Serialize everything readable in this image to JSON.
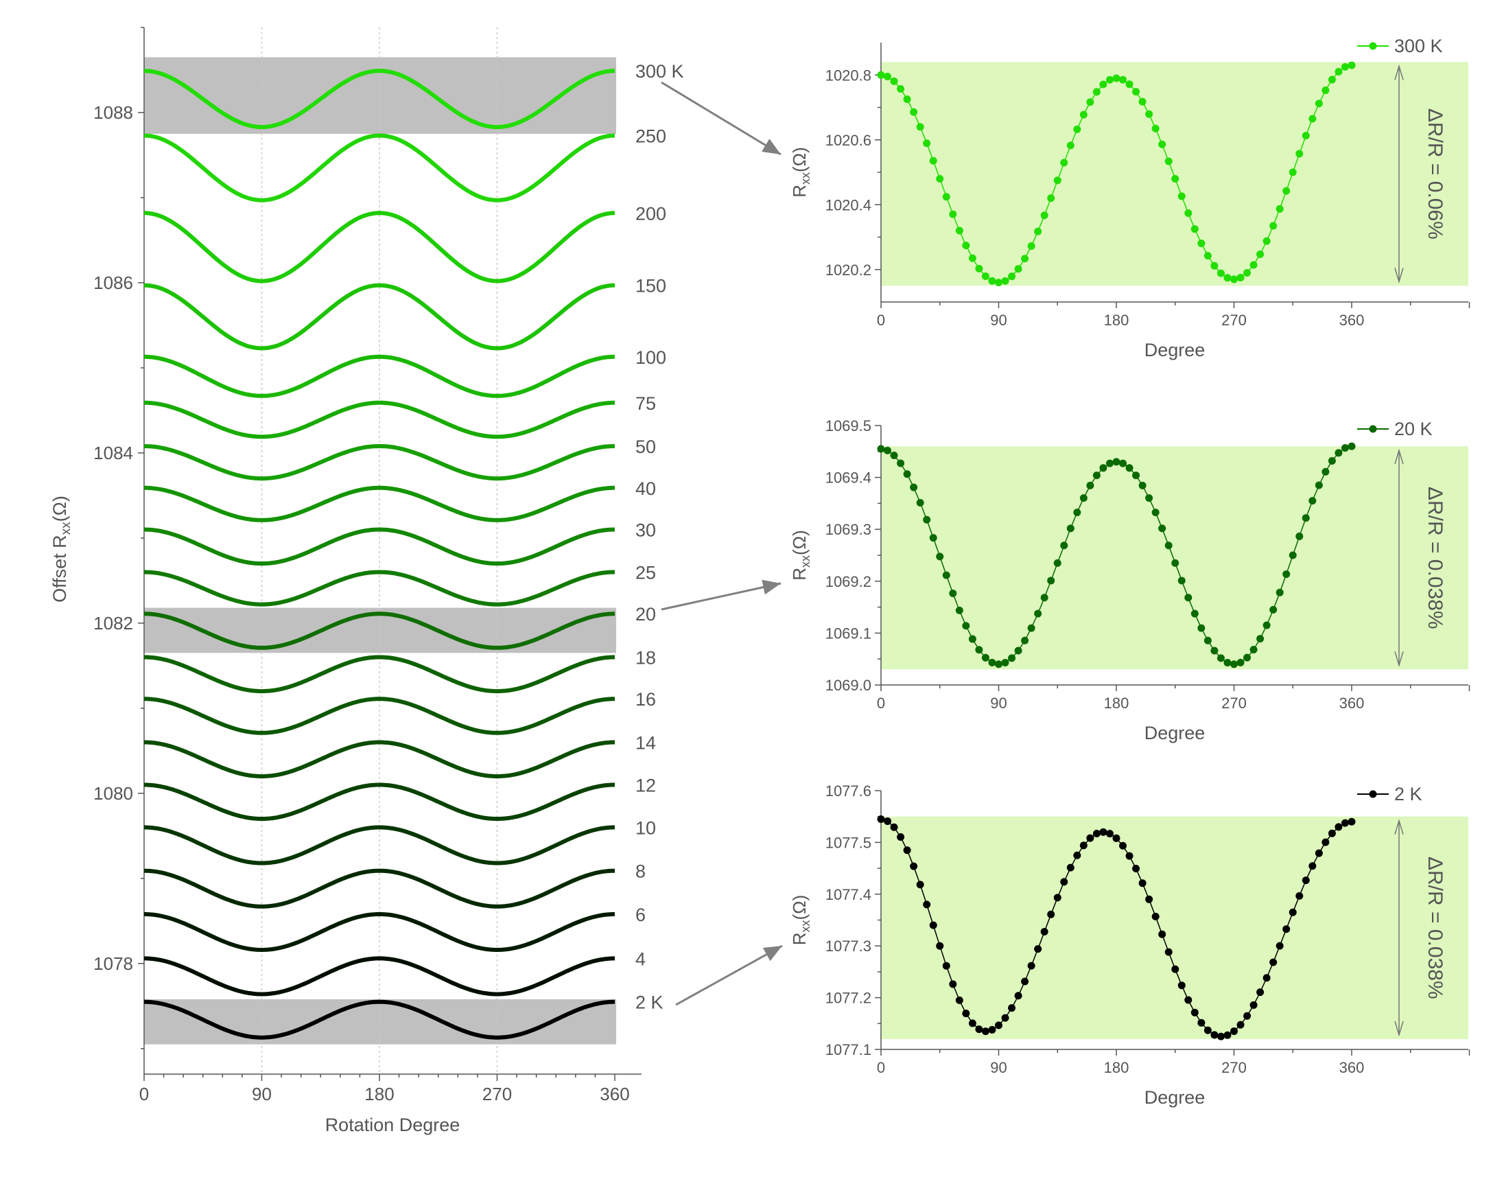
{
  "colors": {
    "axis": "#555555",
    "text": "#555555",
    "highlight_band": "#c0c0c0",
    "green_band": "#ddf7bd",
    "arrow": "#808080",
    "grid": "#c8c8c8"
  },
  "chart_data": [
    {
      "type": "line",
      "id": "main",
      "xlabel": "Rotation Degree",
      "ylabel": "Offset R_xx (Ω)",
      "ylabel_main": "Offset R",
      "ylabel_sub": "xx",
      "ylabel_unit": "(Ω)",
      "xlim": [
        0,
        365
      ],
      "ylim": [
        1076.7,
        1089.0
      ],
      "xticks": [
        0,
        90,
        180,
        270,
        360
      ],
      "yticks": [
        1078,
        1080,
        1082,
        1084,
        1086,
        1088
      ],
      "vertical_gridlines": [
        90,
        180,
        270
      ],
      "highlight_bands": [
        {
          "label": "300 K",
          "y0": 1087.75,
          "y1": 1088.65
        },
        {
          "label": "20",
          "y0": 1081.65,
          "y1": 1082.18
        },
        {
          "label": "2 K",
          "y0": 1077.05,
          "y1": 1077.58
        }
      ],
      "series": [
        {
          "name": "300 K",
          "baseline": 1088.16,
          "amplitude": 0.33,
          "color": "#22dd00"
        },
        {
          "name": "250",
          "baseline": 1087.35,
          "amplitude": 0.38,
          "color": "#22d500"
        },
        {
          "name": "200",
          "baseline": 1086.42,
          "amplitude": 0.4,
          "color": "#1ecc00"
        },
        {
          "name": "150",
          "baseline": 1085.6,
          "amplitude": 0.37,
          "color": "#1cc200"
        },
        {
          "name": "100",
          "baseline": 1084.9,
          "amplitude": 0.23,
          "color": "#1ab800"
        },
        {
          "name": "75",
          "baseline": 1084.39,
          "amplitude": 0.2,
          "color": "#18ab00"
        },
        {
          "name": "50",
          "baseline": 1083.89,
          "amplitude": 0.19,
          "color": "#16a000"
        },
        {
          "name": "40",
          "baseline": 1083.4,
          "amplitude": 0.19,
          "color": "#149400"
        },
        {
          "name": "30",
          "baseline": 1082.9,
          "amplitude": 0.2,
          "color": "#138700"
        },
        {
          "name": "25",
          "baseline": 1082.41,
          "amplitude": 0.19,
          "color": "#127a00"
        },
        {
          "name": "20",
          "baseline": 1081.91,
          "amplitude": 0.2,
          "color": "#106e00"
        },
        {
          "name": "18",
          "baseline": 1081.4,
          "amplitude": 0.2,
          "color": "#0e6200"
        },
        {
          "name": "16",
          "baseline": 1080.91,
          "amplitude": 0.2,
          "color": "#0c5700"
        },
        {
          "name": "14",
          "baseline": 1080.4,
          "amplitude": 0.2,
          "color": "#0b4d00"
        },
        {
          "name": "12",
          "baseline": 1079.9,
          "amplitude": 0.2,
          "color": "#094200"
        },
        {
          "name": "10",
          "baseline": 1079.39,
          "amplitude": 0.21,
          "color": "#073600"
        },
        {
          "name": "8",
          "baseline": 1078.88,
          "amplitude": 0.21,
          "color": "#052a00"
        },
        {
          "name": "6",
          "baseline": 1078.37,
          "amplitude": 0.21,
          "color": "#031c00"
        },
        {
          "name": "4",
          "baseline": 1077.85,
          "amplitude": 0.21,
          "color": "#020f00"
        },
        {
          "name": "2 K",
          "baseline": 1077.34,
          "amplitude": 0.21,
          "color": "#000000"
        }
      ]
    },
    {
      "type": "scatter",
      "id": "panel-300k",
      "legend": "300 K",
      "series_color": "#22dd00",
      "xlabel": "Degree",
      "ylabel_main": "R",
      "ylabel_sub": "xx",
      "ylabel_unit": "(Ω)",
      "xlim": [
        0,
        500
      ],
      "ylim": [
        1020.1,
        1020.9
      ],
      "xticks": [
        0,
        90,
        180,
        270,
        360
      ],
      "yticks": [
        1020.2,
        1020.4,
        1020.6,
        1020.8
      ],
      "ytick_labels": [
        "1020.2",
        "1020.4",
        "1020.6",
        "1020.8"
      ],
      "band": [
        1020.15,
        1020.84
      ],
      "annotation": "ΔR/R = 0.06%",
      "points": {
        "start": 1020.8,
        "min1": [
          90,
          1020.16
        ],
        "max": [
          180,
          1020.79
        ],
        "min2": [
          270,
          1020.17
        ],
        "end": 1020.83
      }
    },
    {
      "type": "scatter",
      "id": "panel-20k",
      "legend": "20 K",
      "series_color": "#0a6a00",
      "xlabel": "Degree",
      "ylabel_main": "R",
      "ylabel_sub": "xx",
      "ylabel_unit": "(Ω)",
      "xlim": [
        0,
        500
      ],
      "ylim": [
        1069.0,
        1069.5
      ],
      "xticks": [
        0,
        90,
        180,
        270,
        360
      ],
      "yticks": [
        1069.0,
        1069.1,
        1069.2,
        1069.3,
        1069.4,
        1069.5
      ],
      "ytick_labels": [
        "1069.0",
        "1069.1",
        "1069.2",
        "1069.3",
        "1069.4",
        "1069.5"
      ],
      "band": [
        1069.03,
        1069.46
      ],
      "annotation": "ΔR/R = 0.038%",
      "points": {
        "start": 1069.455,
        "min1": [
          90,
          1069.04
        ],
        "max": [
          180,
          1069.43
        ],
        "min2": [
          270,
          1069.04
        ],
        "end": 1069.46
      }
    },
    {
      "type": "scatter",
      "id": "panel-2k",
      "legend": "2 K",
      "series_color": "#000000",
      "xlabel": "Degree",
      "ylabel_main": "R",
      "ylabel_sub": "xx",
      "ylabel_unit": "(Ω)",
      "xlim": [
        0,
        500
      ],
      "ylim": [
        1077.1,
        1077.6
      ],
      "xticks": [
        0,
        90,
        180,
        270,
        360
      ],
      "yticks": [
        1077.1,
        1077.2,
        1077.3,
        1077.4,
        1077.5,
        1077.6
      ],
      "ytick_labels": [
        "1077.1",
        "1077.2",
        "1077.3",
        "1077.4",
        "1077.5",
        "1077.6"
      ],
      "band": [
        1077.12,
        1077.55
      ],
      "annotation": "ΔR/R = 0.038%",
      "points": {
        "start": 1077.545,
        "min1": [
          80,
          1077.135
        ],
        "max": [
          170,
          1077.52
        ],
        "min2": [
          260,
          1077.125
        ],
        "end": 1077.54
      }
    }
  ]
}
